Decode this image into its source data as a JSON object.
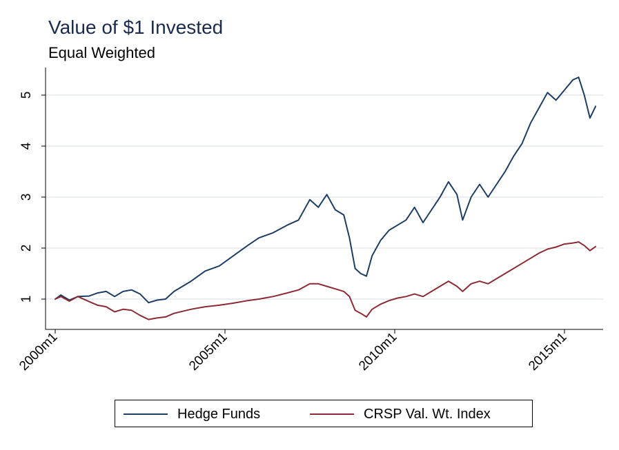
{
  "title": "Value of $1 Invested",
  "subtitle": "Equal Weighted",
  "colors": {
    "hedge": "#1c3d63",
    "crsp": "#8b2a33",
    "grid": "#e3e8ee",
    "axis": "#000000"
  },
  "chart_data": {
    "type": "line",
    "title": "Value of $1 Invested",
    "subtitle": "Equal Weighted",
    "xlabel": "",
    "ylabel": "",
    "x_ticks": [
      "2000m1",
      "2005m1",
      "2010m1",
      "2015m1"
    ],
    "y_ticks": [
      1,
      2,
      3,
      4,
      5
    ],
    "xlim": [
      "2000m1",
      "2016m1"
    ],
    "ylim": [
      0.45,
      5.55
    ],
    "grid": "horizontal",
    "legend_position": "bottom",
    "series": [
      {
        "name": "Hedge Funds",
        "color": "#1c3d63",
        "points": [
          [
            "2000m1",
            1.0
          ],
          [
            "2000m3",
            1.08
          ],
          [
            "2000m6",
            0.98
          ],
          [
            "2000m9",
            1.05
          ],
          [
            "2001m1",
            1.06
          ],
          [
            "2001m4",
            1.12
          ],
          [
            "2001m7",
            1.15
          ],
          [
            "2001m10",
            1.05
          ],
          [
            "2002m1",
            1.15
          ],
          [
            "2002m4",
            1.18
          ],
          [
            "2002m7",
            1.1
          ],
          [
            "2002m10",
            0.93
          ],
          [
            "2003m1",
            0.98
          ],
          [
            "2003m4",
            1.0
          ],
          [
            "2003m7",
            1.15
          ],
          [
            "2004m1",
            1.35
          ],
          [
            "2004m6",
            1.55
          ],
          [
            "2004m11",
            1.65
          ],
          [
            "2005m4",
            1.85
          ],
          [
            "2005m9",
            2.05
          ],
          [
            "2006m1",
            2.2
          ],
          [
            "2006m6",
            2.3
          ],
          [
            "2006m11",
            2.45
          ],
          [
            "2007m3",
            2.55
          ],
          [
            "2007m7",
            2.95
          ],
          [
            "2007m10",
            2.8
          ],
          [
            "2008m1",
            3.05
          ],
          [
            "2008m4",
            2.75
          ],
          [
            "2008m7",
            2.65
          ],
          [
            "2008m9",
            2.2
          ],
          [
            "2008m11",
            1.6
          ],
          [
            "2009m1",
            1.5
          ],
          [
            "2009m3",
            1.45
          ],
          [
            "2009m5",
            1.85
          ],
          [
            "2009m8",
            2.15
          ],
          [
            "2009m11",
            2.35
          ],
          [
            "2010m2",
            2.45
          ],
          [
            "2010m5",
            2.55
          ],
          [
            "2010m8",
            2.8
          ],
          [
            "2010m11",
            2.5
          ],
          [
            "2011m2",
            2.75
          ],
          [
            "2011m5",
            3.0
          ],
          [
            "2011m8",
            3.3
          ],
          [
            "2011m11",
            3.05
          ],
          [
            "2012m1",
            2.55
          ],
          [
            "2012m4",
            3.0
          ],
          [
            "2012m7",
            3.25
          ],
          [
            "2012m10",
            3.0
          ],
          [
            "2013m1",
            3.25
          ],
          [
            "2013m4",
            3.5
          ],
          [
            "2013m7",
            3.8
          ],
          [
            "2013m10",
            4.05
          ],
          [
            "2014m1",
            4.45
          ],
          [
            "2014m4",
            4.75
          ],
          [
            "2014m7",
            5.05
          ],
          [
            "2014m10",
            4.9
          ],
          [
            "2015m1",
            5.1
          ],
          [
            "2015m4",
            5.3
          ],
          [
            "2015m6",
            5.35
          ],
          [
            "2015m8",
            5.0
          ],
          [
            "2015m10",
            4.55
          ],
          [
            "2015m12",
            4.78
          ]
        ]
      },
      {
        "name": "CRSP Val. Wt. Index",
        "color": "#8b2a33",
        "points": [
          [
            "2000m1",
            1.0
          ],
          [
            "2000m3",
            1.05
          ],
          [
            "2000m6",
            0.96
          ],
          [
            "2000m9",
            1.05
          ],
          [
            "2001m1",
            0.95
          ],
          [
            "2001m4",
            0.88
          ],
          [
            "2001m7",
            0.85
          ],
          [
            "2001m10",
            0.75
          ],
          [
            "2002m1",
            0.8
          ],
          [
            "2002m4",
            0.78
          ],
          [
            "2002m7",
            0.68
          ],
          [
            "2002m10",
            0.6
          ],
          [
            "2003m1",
            0.63
          ],
          [
            "2003m4",
            0.65
          ],
          [
            "2003m7",
            0.72
          ],
          [
            "2004m1",
            0.8
          ],
          [
            "2004m6",
            0.85
          ],
          [
            "2004m11",
            0.88
          ],
          [
            "2005m4",
            0.92
          ],
          [
            "2005m9",
            0.97
          ],
          [
            "2006m1",
            1.0
          ],
          [
            "2006m6",
            1.05
          ],
          [
            "2006m11",
            1.12
          ],
          [
            "2007m3",
            1.18
          ],
          [
            "2007m7",
            1.3
          ],
          [
            "2007m10",
            1.3
          ],
          [
            "2008m1",
            1.25
          ],
          [
            "2008m4",
            1.2
          ],
          [
            "2008m7",
            1.15
          ],
          [
            "2008m9",
            1.05
          ],
          [
            "2008m11",
            0.78
          ],
          [
            "2009m1",
            0.72
          ],
          [
            "2009m3",
            0.65
          ],
          [
            "2009m5",
            0.8
          ],
          [
            "2009m8",
            0.9
          ],
          [
            "2009m11",
            0.97
          ],
          [
            "2010m2",
            1.02
          ],
          [
            "2010m5",
            1.05
          ],
          [
            "2010m8",
            1.1
          ],
          [
            "2010m11",
            1.05
          ],
          [
            "2011m2",
            1.15
          ],
          [
            "2011m5",
            1.25
          ],
          [
            "2011m8",
            1.35
          ],
          [
            "2011m11",
            1.25
          ],
          [
            "2012m1",
            1.15
          ],
          [
            "2012m4",
            1.3
          ],
          [
            "2012m7",
            1.35
          ],
          [
            "2012m10",
            1.3
          ],
          [
            "2013m1",
            1.4
          ],
          [
            "2013m4",
            1.5
          ],
          [
            "2013m7",
            1.6
          ],
          [
            "2013m10",
            1.7
          ],
          [
            "2014m1",
            1.8
          ],
          [
            "2014m4",
            1.9
          ],
          [
            "2014m7",
            1.98
          ],
          [
            "2014m10",
            2.02
          ],
          [
            "2015m1",
            2.08
          ],
          [
            "2015m4",
            2.1
          ],
          [
            "2015m6",
            2.12
          ],
          [
            "2015m8",
            2.05
          ],
          [
            "2015m10",
            1.95
          ],
          [
            "2015m12",
            2.03
          ]
        ]
      }
    ]
  }
}
